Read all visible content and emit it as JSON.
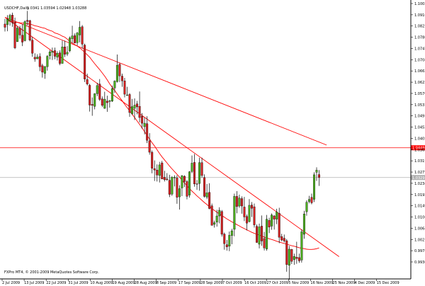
{
  "chart_data": {
    "type": "candlestick",
    "symbol": "USDCHF,Daily",
    "header_values": "1.0341 1.03594 1.02948 1.03288",
    "copyright": "FXPro MT4, © 2001-2009 MetaQuotes Software Corp.",
    "y_ticks": [
      "1.10030",
      "1.09100",
      "1.08233",
      "1.07860",
      "1.07470",
      "1.07080",
      "1.06620",
      "1.06230",
      "1.05760",
      "1.05370",
      "1.04910",
      "1.04520",
      "1.04050",
      "1.03630",
      "1.03190",
      "1.02770",
      "1.02340",
      "1.01920",
      "1.01490",
      "1.01060",
      "1.00640",
      "1.00210",
      "0.99780",
      "0.99360"
    ],
    "x_ticks": [
      "2 Jul 2009",
      "13 Jul 2009",
      "22 Jul 2009",
      "31 Jul 2009",
      "10 Aug 2009",
      "19 Aug 2009",
      "28 Aug 2009",
      "8 Sep 2009",
      "17 Sep 2009",
      "28 Sep 2009",
      "7 Oct 2009",
      "16 Oct 2009",
      "27 Oct 2009",
      "5 Nov 2009",
      "16 Nov 2009",
      "25 Nov 2009",
      "4 Dec 2009",
      "15 Dec 2009"
    ],
    "ylim": [
      0.992,
      1.1045
    ],
    "horizontal_levels": [
      {
        "price": 1.0449,
        "color": "#ff0000",
        "label": "1.0449"
      },
      {
        "price": 1.0329,
        "color": "#b0b0b0",
        "label": "1.0329"
      }
    ],
    "trendlines": [
      {
        "from": [
          0,
          1.0975
        ],
        "to": [
          129,
          1.046
        ],
        "color": "#ff0000"
      },
      {
        "from": [
          0,
          1.0975
        ],
        "to": [
          134,
          1.001
        ],
        "color": "#ff0000"
      }
    ],
    "moving_average": {
      "color": "#ff0000",
      "values": [
        1.0961,
        1.0959,
        1.0957,
        1.0955,
        1.0955,
        1.0953,
        1.0952,
        1.0951,
        1.0949,
        1.0948,
        1.0945,
        1.0941,
        1.0939,
        1.0936,
        1.0933,
        1.0931,
        1.0926,
        1.0922,
        1.0919,
        1.0912,
        1.0909,
        1.0905,
        1.0899,
        1.0895,
        1.0887,
        1.0878,
        1.0871,
        1.0865,
        1.0859,
        1.0852,
        1.0843,
        1.0834,
        1.0824,
        1.0814,
        1.0801,
        1.0788,
        1.0776,
        1.0764,
        1.0751,
        1.0738,
        1.0723,
        1.0707,
        1.0693,
        1.068,
        1.0666,
        1.0652,
        1.0639,
        1.0624,
        1.0611,
        1.0598,
        1.0585,
        1.0571,
        1.0557,
        1.0543,
        1.0529,
        1.0514,
        1.0499,
        1.0484,
        1.0469,
        1.0456,
        1.0441,
        1.0426,
        1.0412,
        1.04,
        1.0388,
        1.0375,
        1.0364,
        1.0353,
        1.0342,
        1.0331,
        1.0319,
        1.0307,
        1.0296,
        1.0285,
        1.0274,
        1.0265,
        1.0255,
        1.0246,
        1.0237,
        1.0228,
        1.022,
        1.0211,
        1.0203,
        1.0196,
        1.0189,
        1.0182,
        1.0175,
        1.0169,
        1.0162,
        1.0156,
        1.015,
        1.0145,
        1.0139,
        1.0134,
        1.0128,
        1.0123,
        1.0118,
        1.0113,
        1.0108,
        1.0104,
        1.01,
        1.0097,
        1.0093,
        1.0089,
        1.0085,
        1.0082,
        1.0079,
        1.0076,
        1.0072,
        1.0069,
        1.0066,
        1.0063,
        1.006,
        1.0057,
        1.0054,
        1.0052,
        1.0049,
        1.0046,
        1.0044,
        1.0042,
        1.004,
        1.0039,
        1.0039,
        1.004,
        1.0042,
        1.0045
      ]
    },
    "candles": [
      {
        "o": 1.0948,
        "h": 1.0969,
        "l": 1.0918,
        "c": 1.0935
      },
      {
        "o": 1.0946,
        "h": 1.0984,
        "l": 1.0919,
        "c": 1.0967
      },
      {
        "o": 1.0961,
        "h": 1.0989,
        "l": 1.0942,
        "c": 1.0983
      },
      {
        "o": 1.0984,
        "h": 1.0994,
        "l": 1.0937,
        "c": 1.0953
      },
      {
        "o": 1.0953,
        "h": 1.0974,
        "l": 1.0847,
        "c": 1.0852
      },
      {
        "o": 1.0877,
        "h": 1.0939,
        "l": 1.0876,
        "c": 1.0932
      },
      {
        "o": 1.0931,
        "h": 1.0941,
        "l": 1.0889,
        "c": 1.0904
      },
      {
        "o": 1.0903,
        "h": 1.0948,
        "l": 1.0859,
        "c": 1.0875
      },
      {
        "o": 1.0881,
        "h": 1.0963,
        "l": 1.0878,
        "c": 1.0958
      },
      {
        "o": 1.0963,
        "h": 1.1001,
        "l": 1.0942,
        "c": 1.0959
      },
      {
        "o": 1.0962,
        "h": 1.0965,
        "l": 1.0878,
        "c": 1.0883
      },
      {
        "o": 1.0883,
        "h": 1.0896,
        "l": 1.0816,
        "c": 1.083
      },
      {
        "o": 1.0814,
        "h": 1.083,
        "l": 1.0796,
        "c": 1.0807
      },
      {
        "o": 1.0808,
        "h": 1.0826,
        "l": 1.0806,
        "c": 1.0815
      },
      {
        "o": 1.0817,
        "h": 1.083,
        "l": 1.0758,
        "c": 1.0776
      },
      {
        "o": 1.078,
        "h": 1.0788,
        "l": 1.0732,
        "c": 1.0754
      },
      {
        "o": 1.0749,
        "h": 1.0777,
        "l": 1.0727,
        "c": 1.0777
      },
      {
        "o": 1.0776,
        "h": 1.0823,
        "l": 1.076,
        "c": 1.0818
      },
      {
        "o": 1.082,
        "h": 1.0843,
        "l": 1.0805,
        "c": 1.0836
      },
      {
        "o": 1.0834,
        "h": 1.0853,
        "l": 1.0803,
        "c": 1.0838
      },
      {
        "o": 1.0841,
        "h": 1.0853,
        "l": 1.0806,
        "c": 1.0818
      },
      {
        "o": 1.0814,
        "h": 1.0838,
        "l": 1.0801,
        "c": 1.083
      },
      {
        "o": 1.0832,
        "h": 1.0842,
        "l": 1.0782,
        "c": 1.0789
      },
      {
        "o": 1.0789,
        "h": 1.0881,
        "l": 1.0789,
        "c": 1.0856
      },
      {
        "o": 1.0856,
        "h": 1.0881,
        "l": 1.0815,
        "c": 1.0826
      },
      {
        "o": 1.0827,
        "h": 1.0859,
        "l": 1.0819,
        "c": 1.0834
      },
      {
        "o": 1.084,
        "h": 1.0898,
        "l": 1.0834,
        "c": 1.0892
      },
      {
        "o": 1.0889,
        "h": 1.0941,
        "l": 1.0871,
        "c": 1.09
      },
      {
        "o": 1.0901,
        "h": 1.091,
        "l": 1.0871,
        "c": 1.0871
      },
      {
        "o": 1.0873,
        "h": 1.0916,
        "l": 1.0861,
        "c": 1.0912
      },
      {
        "o": 1.0904,
        "h": 1.096,
        "l": 1.0874,
        "c": 1.0935
      },
      {
        "o": 1.0937,
        "h": 1.0944,
        "l": 1.0849,
        "c": 1.0867
      },
      {
        "o": 1.0863,
        "h": 1.0869,
        "l": 1.0714,
        "c": 1.0726
      },
      {
        "o": 1.0724,
        "h": 1.0748,
        "l": 1.07,
        "c": 1.0706
      },
      {
        "o": 1.0701,
        "h": 1.0707,
        "l": 1.0595,
        "c": 1.0621
      },
      {
        "o": 1.0624,
        "h": 1.0652,
        "l": 1.0578,
        "c": 1.062
      },
      {
        "o": 1.0616,
        "h": 1.0669,
        "l": 1.0604,
        "c": 1.0667
      },
      {
        "o": 1.0667,
        "h": 1.0711,
        "l": 1.0657,
        "c": 1.07
      },
      {
        "o": 1.0706,
        "h": 1.0726,
        "l": 1.0638,
        "c": 1.0644
      },
      {
        "o": 1.0646,
        "h": 1.0656,
        "l": 1.0613,
        "c": 1.062
      },
      {
        "o": 1.0608,
        "h": 1.0675,
        "l": 1.0606,
        "c": 1.0645
      },
      {
        "o": 1.0637,
        "h": 1.0659,
        "l": 1.0594,
        "c": 1.0631
      },
      {
        "o": 1.0636,
        "h": 1.0642,
        "l": 1.0611,
        "c": 1.0639
      },
      {
        "o": 1.0637,
        "h": 1.07,
        "l": 1.0634,
        "c": 1.0688
      },
      {
        "o": 1.069,
        "h": 1.0721,
        "l": 1.067,
        "c": 1.0718
      },
      {
        "o": 1.0716,
        "h": 1.0825,
        "l": 1.0712,
        "c": 1.0782
      },
      {
        "o": 1.0786,
        "h": 1.079,
        "l": 1.0714,
        "c": 1.0739
      },
      {
        "o": 1.0738,
        "h": 1.0748,
        "l": 1.0695,
        "c": 1.0719
      },
      {
        "o": 1.0719,
        "h": 1.0731,
        "l": 1.0652,
        "c": 1.0665
      },
      {
        "o": 1.0661,
        "h": 1.0695,
        "l": 1.066,
        "c": 1.0662
      },
      {
        "o": 1.0664,
        "h": 1.0669,
        "l": 1.0574,
        "c": 1.0591
      },
      {
        "o": 1.0586,
        "h": 1.0646,
        "l": 1.0581,
        "c": 1.0615
      },
      {
        "o": 1.0608,
        "h": 1.0648,
        "l": 1.0561,
        "c": 1.0621
      },
      {
        "o": 1.0626,
        "h": 1.0638,
        "l": 1.0584,
        "c": 1.0614
      },
      {
        "o": 1.0616,
        "h": 1.0676,
        "l": 1.0551,
        "c": 1.0571
      },
      {
        "o": 1.0576,
        "h": 1.0589,
        "l": 1.0526,
        "c": 1.0548
      },
      {
        "o": 1.0534,
        "h": 1.0571,
        "l": 1.0503,
        "c": 1.0548
      },
      {
        "o": 1.0546,
        "h": 1.0576,
        "l": 1.0468,
        "c": 1.0479
      },
      {
        "o": 1.0477,
        "h": 1.0508,
        "l": 1.0421,
        "c": 1.0431
      },
      {
        "o": 1.0431,
        "h": 1.0438,
        "l": 1.0346,
        "c": 1.0366
      },
      {
        "o": 1.0365,
        "h": 1.0398,
        "l": 1.0315,
        "c": 1.0359
      },
      {
        "o": 1.0359,
        "h": 1.0382,
        "l": 1.0313,
        "c": 1.0339
      },
      {
        "o": 1.0337,
        "h": 1.0392,
        "l": 1.0309,
        "c": 1.038
      },
      {
        "o": 1.0388,
        "h": 1.0396,
        "l": 1.0322,
        "c": 1.0323
      },
      {
        "o": 1.033,
        "h": 1.0356,
        "l": 1.0313,
        "c": 1.032
      },
      {
        "o": 1.0323,
        "h": 1.0347,
        "l": 1.0316,
        "c": 1.032
      },
      {
        "o": 1.0318,
        "h": 1.034,
        "l": 1.025,
        "c": 1.0261
      },
      {
        "o": 1.0262,
        "h": 1.0334,
        "l": 1.0255,
        "c": 1.033
      },
      {
        "o": 1.033,
        "h": 1.0338,
        "l": 1.0293,
        "c": 1.033
      },
      {
        "o": 1.0327,
        "h": 1.0338,
        "l": 1.0223,
        "c": 1.0249
      },
      {
        "o": 1.0251,
        "h": 1.0298,
        "l": 1.02,
        "c": 1.0284
      },
      {
        "o": 1.0287,
        "h": 1.0339,
        "l": 1.0254,
        "c": 1.0336
      },
      {
        "o": 1.0334,
        "h": 1.0338,
        "l": 1.0291,
        "c": 1.0313
      },
      {
        "o": 1.0313,
        "h": 1.0319,
        "l": 1.0241,
        "c": 1.0253
      },
      {
        "o": 1.0258,
        "h": 1.0355,
        "l": 1.0248,
        "c": 1.0352
      },
      {
        "o": 1.0353,
        "h": 1.0418,
        "l": 1.0346,
        "c": 1.0387
      },
      {
        "o": 1.039,
        "h": 1.0424,
        "l": 1.0292,
        "c": 1.0303
      },
      {
        "o": 1.0304,
        "h": 1.0319,
        "l": 1.0279,
        "c": 1.0302
      },
      {
        "o": 1.0305,
        "h": 1.0409,
        "l": 1.0276,
        "c": 1.0389
      },
      {
        "o": 1.0389,
        "h": 1.0409,
        "l": 1.0328,
        "c": 1.0337
      },
      {
        "o": 1.0329,
        "h": 1.0342,
        "l": 1.0248,
        "c": 1.0253
      },
      {
        "o": 1.025,
        "h": 1.0303,
        "l": 1.0242,
        "c": 1.0267
      },
      {
        "o": 1.0269,
        "h": 1.0306,
        "l": 1.0201,
        "c": 1.0204
      },
      {
        "o": 1.0215,
        "h": 1.0224,
        "l": 1.0135,
        "c": 1.0136
      },
      {
        "o": 1.014,
        "h": 1.0155,
        "l": 1.0127,
        "c": 1.0147
      },
      {
        "o": 1.0149,
        "h": 1.0199,
        "l": 1.0131,
        "c": 1.0174
      },
      {
        "o": 1.0174,
        "h": 1.0209,
        "l": 1.0144,
        "c": 1.0197
      },
      {
        "o": 1.0192,
        "h": 1.0198,
        "l": 1.0091,
        "c": 1.01
      },
      {
        "o": 1.0101,
        "h": 1.0107,
        "l": 1.0038,
        "c": 1.0062
      },
      {
        "o": 1.0058,
        "h": 1.0077,
        "l": 1.0034,
        "c": 1.0049
      },
      {
        "o": 1.0052,
        "h": 1.0111,
        "l": 1.0032,
        "c": 1.0096
      },
      {
        "o": 1.0095,
        "h": 1.0122,
        "l": 1.006,
        "c": 1.0114
      },
      {
        "o": 1.012,
        "h": 1.0264,
        "l": 1.0092,
        "c": 1.0253
      },
      {
        "o": 1.0253,
        "h": 1.0274,
        "l": 1.0185,
        "c": 1.0212
      },
      {
        "o": 1.0214,
        "h": 1.026,
        "l": 1.0207,
        "c": 1.0246
      },
      {
        "o": 1.0244,
        "h": 1.0253,
        "l": 1.0183,
        "c": 1.0214
      },
      {
        "o": 1.021,
        "h": 1.0251,
        "l": 1.0153,
        "c": 1.017
      },
      {
        "o": 1.0172,
        "h": 1.018,
        "l": 1.0116,
        "c": 1.0145
      },
      {
        "o": 1.0151,
        "h": 1.0242,
        "l": 1.0148,
        "c": 1.0217
      },
      {
        "o": 1.0218,
        "h": 1.023,
        "l": 1.017,
        "c": 1.0205
      },
      {
        "o": 1.0211,
        "h": 1.0224,
        "l": 1.0127,
        "c": 1.0138
      },
      {
        "o": 1.0132,
        "h": 1.014,
        "l": 1.0066,
        "c": 1.0067
      },
      {
        "o": 1.006,
        "h": 1.0143,
        "l": 1.0043,
        "c": 1.013
      },
      {
        "o": 1.0133,
        "h": 1.0176,
        "l": 1.0054,
        "c": 1.0073
      },
      {
        "o": 1.0083,
        "h": 1.011,
        "l": 1.0035,
        "c": 1.0045
      },
      {
        "o": 1.0041,
        "h": 1.0178,
        "l": 1.0034,
        "c": 1.0161
      },
      {
        "o": 1.0156,
        "h": 1.0167,
        "l": 1.0105,
        "c": 1.0129
      },
      {
        "o": 1.0133,
        "h": 1.0184,
        "l": 1.0118,
        "c": 1.0178
      },
      {
        "o": 1.0174,
        "h": 1.0178,
        "l": 1.0119,
        "c": 1.0161
      },
      {
        "o": 1.0161,
        "h": 1.0203,
        "l": 1.0141,
        "c": 1.019
      },
      {
        "o": 1.0185,
        "h": 1.0207,
        "l": 1.0064,
        "c": 1.0088
      },
      {
        "o": 1.0091,
        "h": 1.0102,
        "l": 1.0072,
        "c": 1.0077
      },
      {
        "o": 1.0084,
        "h": 1.0099,
        "l": 1.0067,
        "c": 1.0073
      },
      {
        "o": 1.0074,
        "h": 1.0081,
        "l": 0.9949,
        "c": 0.9978
      },
      {
        "o": 0.9975,
        "h": 1.0053,
        "l": 0.9917,
        "c": 1.004
      },
      {
        "o": 1.0039,
        "h": 1.0041,
        "l": 0.998,
        "c": 0.9991
      },
      {
        "o": 0.9998,
        "h": 1.0022,
        "l": 0.9977,
        "c": 1.0011
      },
      {
        "o": 1.0008,
        "h": 1.007,
        "l": 0.9981,
        "c": 1.0002
      },
      {
        "o": 1.0006,
        "h": 1.0022,
        "l": 0.9985,
        "c": 0.9993
      },
      {
        "o": 0.9996,
        "h": 1.012,
        "l": 0.9986,
        "c": 1.011
      },
      {
        "o": 1.01,
        "h": 1.0195,
        "l": 1.0082,
        "c": 1.0182
      },
      {
        "o": 1.0191,
        "h": 1.0237,
        "l": 1.0175,
        "c": 1.0229
      },
      {
        "o": 1.0232,
        "h": 1.0255,
        "l": 1.0225,
        "c": 1.0241
      },
      {
        "o": 1.0249,
        "h": 1.0264,
        "l": 1.0221,
        "c": 1.0227
      },
      {
        "o": 1.0241,
        "h": 1.035,
        "l": 1.023,
        "c": 1.034
      },
      {
        "o": 1.035,
        "h": 1.037,
        "l": 1.0315,
        "c": 1.0359
      },
      {
        "o": 1.0341,
        "h": 1.0359,
        "l": 1.0295,
        "c": 1.0329
      }
    ]
  }
}
